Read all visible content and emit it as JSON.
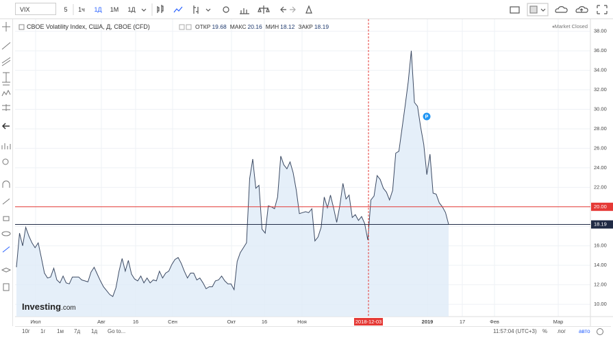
{
  "toolbar": {
    "symbol": "VIX",
    "intervals": [
      "5",
      "1ч",
      "1Д",
      "1М"
    ],
    "interval_menu": "1Д"
  },
  "legend": {
    "title": "CBOE Volatility Index, США, Д, CBOE (CFD)",
    "fields": [
      {
        "label": "ОТКР",
        "value": 19.68
      },
      {
        "label": "МАКС",
        "value": 20.16
      },
      {
        "label": "МИН",
        "value": 18.12
      },
      {
        "label": "ЗАКР",
        "value": 18.19
      }
    ],
    "status": "Market Closed"
  },
  "chart": {
    "type": "line",
    "color": "#3c4a63",
    "fill": "#deebf7",
    "values": [
      13.8,
      17.3,
      16.0,
      17.9,
      17.0,
      16.3,
      15.8,
      16.3,
      14.8,
      13.2,
      12.7,
      12.8,
      13.7,
      12.5,
      12.2,
      12.9,
      12.2,
      12.1,
      12.8,
      12.8,
      12.8,
      12.5,
      12.4,
      12.3,
      13.3,
      13.8,
      13.1,
      12.4,
      11.8,
      11.4,
      11.0,
      10.8,
      11.7,
      13.4,
      14.7,
      13.4,
      14.5,
      13.1,
      12.6,
      12.4,
      12.9,
      12.2,
      12.7,
      12.2,
      12.5,
      12.4,
      13.4,
      12.7,
      13.2,
      13.4,
      14.1,
      14.6,
      14.8,
      14.2,
      13.4,
      12.7,
      13.2,
      13.2,
      12.5,
      12.7,
      12.2,
      11.6,
      11.8,
      11.8,
      12.4,
      12.5,
      12.9,
      12.4,
      12.1,
      12.1,
      11.5,
      14.4,
      15.3,
      15.8,
      16.3,
      22.9,
      24.9,
      21.9,
      22.2,
      17.7,
      17.3,
      20.1,
      20.0,
      19.8,
      21.0,
      25.2,
      24.3,
      23.9,
      24.6,
      23.5,
      21.7,
      19.3,
      19.4,
      19.5,
      19.4,
      19.8,
      16.5,
      16.9,
      17.9,
      21.0,
      19.9,
      21.2,
      19.9,
      18.4,
      20.1,
      22.4,
      20.8,
      21.2,
      18.9,
      19.2,
      18.6,
      19.0,
      18.3,
      16.6,
      20.7,
      21.1,
      23.2,
      22.8,
      21.9,
      21.5,
      20.7,
      21.7,
      25.5,
      25.7,
      28.0,
      30.3,
      32.8,
      36.0,
      30.7,
      30.3,
      28.2,
      26.4,
      23.3,
      25.4,
      21.4,
      21.3,
      20.4,
      20.0,
      19.4,
      18.19
    ],
    "ylim": [
      8.74,
      39.24
    ],
    "yticks": [
      {
        "value": 10,
        "label": "10.00"
      },
      {
        "value": 12,
        "label": "12.00"
      },
      {
        "value": 14,
        "label": "14.00"
      },
      {
        "value": 16,
        "label": "16.00"
      },
      {
        "value": 18,
        "label": "18.00"
      },
      {
        "value": 20,
        "label": "20.00"
      },
      {
        "value": 22,
        "label": "22.00"
      },
      {
        "value": 24,
        "label": "24.00"
      },
      {
        "value": 26,
        "label": "26.00"
      },
      {
        "value": 28,
        "label": "28.00"
      },
      {
        "value": 30,
        "label": "30.00"
      },
      {
        "value": 32,
        "label": "32.00"
      },
      {
        "value": 34,
        "label": "34.00"
      },
      {
        "value": 36,
        "label": "36.00"
      },
      {
        "value": 38,
        "label": "38.00"
      }
    ],
    "x_labels": [
      "Июл",
      "Авг",
      "16",
      "Сен",
      "Окт",
      "16",
      "Ноя",
      "2019",
      "17",
      "Фев",
      "Мар"
    ],
    "crosshair": {
      "label": "2018-12-03",
      "color": "#e53935"
    },
    "price_lines": [
      {
        "value": 20,
        "label": "20.00",
        "color": "#e53935"
      },
      {
        "value": 18.19,
        "label": "18.19",
        "color": "#1f2a44"
      }
    ]
  },
  "badge": "P",
  "watermark": {
    "brand": "Investing",
    "suffix": ".com"
  },
  "bottom_bar": {
    "ranges": [
      "10г",
      "1г",
      "1м",
      "7д",
      "1д"
    ],
    "goto": "Go to...",
    "time": "11:57:04 (UTC+3)",
    "modes": [
      "%",
      "лог",
      "авто"
    ]
  }
}
